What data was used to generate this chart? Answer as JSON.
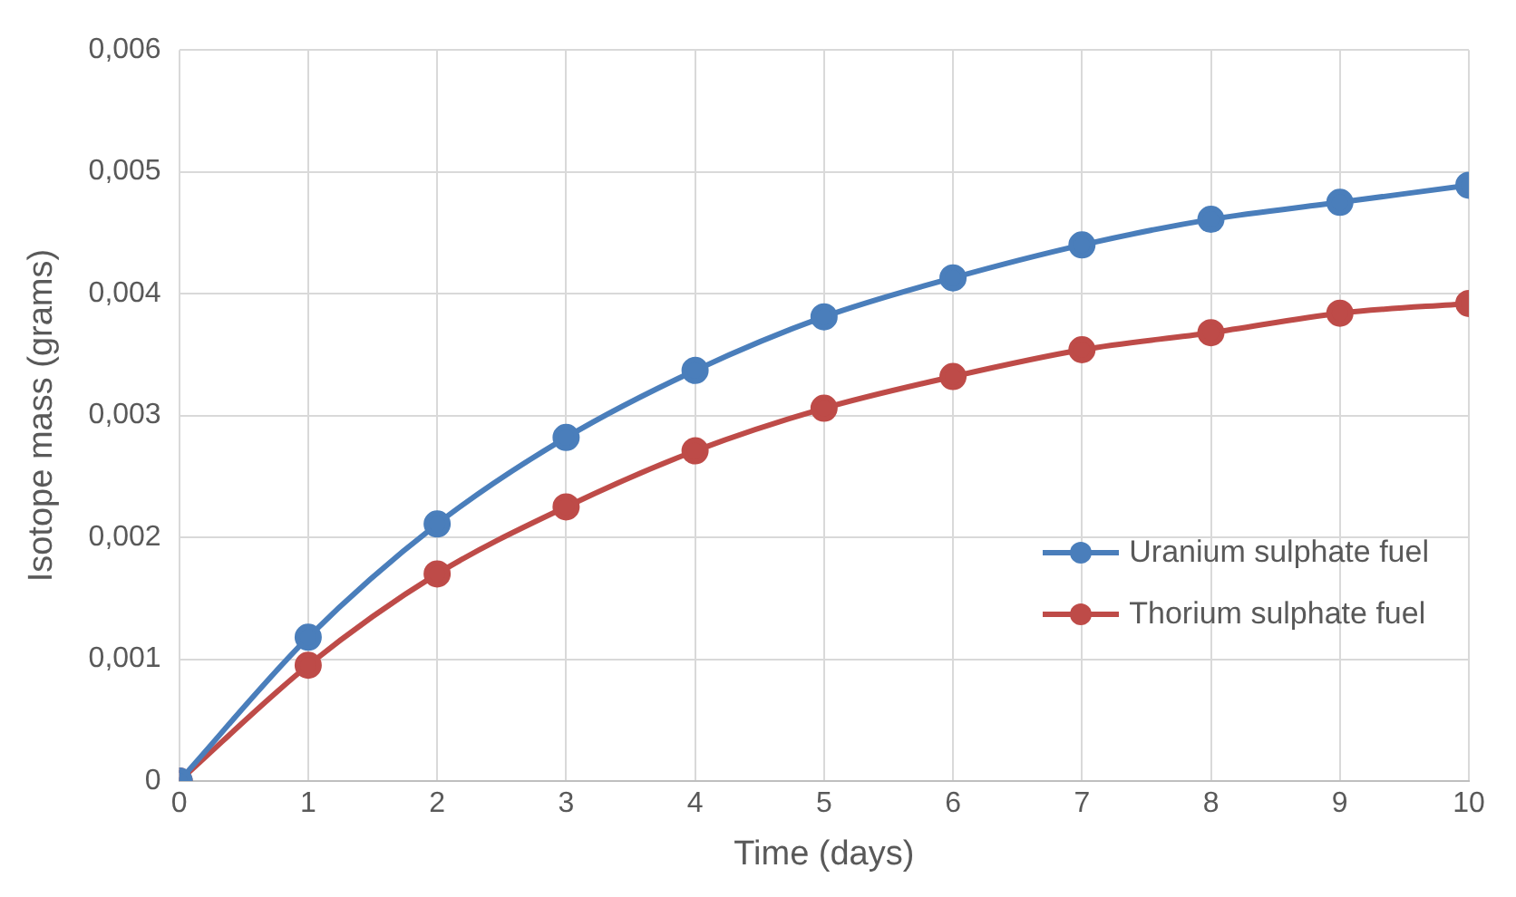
{
  "chart_data": {
    "type": "line",
    "xlabel": "Time (days)",
    "ylabel": "Isotope mass (grams)",
    "x": [
      0,
      1,
      2,
      3,
      4,
      5,
      6,
      7,
      8,
      9,
      10
    ],
    "xlim": [
      0,
      10
    ],
    "xticks": [
      0,
      1,
      2,
      3,
      4,
      5,
      6,
      7,
      8,
      9,
      10
    ],
    "ylim": [
      0,
      0.006
    ],
    "yticks": [
      {
        "value": 0,
        "label": "0"
      },
      {
        "value": 0.001,
        "label": "0,001"
      },
      {
        "value": 0.002,
        "label": "0,002"
      },
      {
        "value": 0.003,
        "label": "0,003"
      },
      {
        "value": 0.004,
        "label": "0,004"
      },
      {
        "value": 0.005,
        "label": "0,005"
      },
      {
        "value": 0.006,
        "label": "0,006"
      }
    ],
    "series": [
      {
        "name": "Uranium sulphate fuel",
        "color": "#4a7ebb",
        "values": [
          0,
          0.00118,
          0.00211,
          0.00282,
          0.00337,
          0.00381,
          0.00413,
          0.0044,
          0.00461,
          0.00475,
          0.00489
        ]
      },
      {
        "name": "Thorium sulphate fuel",
        "color": "#be4b48",
        "values": [
          0,
          0.00095,
          0.0017,
          0.00225,
          0.00271,
          0.00306,
          0.00332,
          0.00354,
          0.00368,
          0.00384,
          0.00392
        ]
      }
    ],
    "grid": true,
    "legend": "right",
    "marker": "circle",
    "line_style": "solid"
  }
}
